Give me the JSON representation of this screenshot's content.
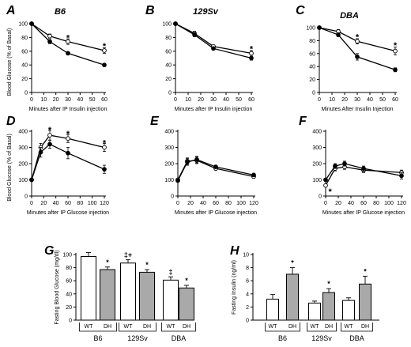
{
  "chart_data": [
    {
      "id": "A",
      "type": "line",
      "panel_letter": "A",
      "title": "B6",
      "xlabel": "Minutes after IP Insulin injection",
      "ylabel": "Blood Glucose (% of Basal)",
      "x": [
        0,
        15,
        30,
        60
      ],
      "xticks": [
        "0",
        "10",
        "20",
        "30",
        "40",
        "50",
        "60"
      ],
      "xlim": [
        0,
        60
      ],
      "yticks": [
        "0",
        "20",
        "40",
        "60",
        "80",
        "100"
      ],
      "ylim": [
        0,
        100
      ],
      "series": [
        {
          "marker": "open",
          "values": [
            100,
            82,
            74,
            61
          ],
          "errors": [
            0,
            3,
            4,
            4
          ]
        },
        {
          "marker": "filled",
          "values": [
            100,
            74,
            57,
            40
          ],
          "errors": [
            0,
            3,
            2,
            2
          ]
        }
      ],
      "sig": [
        {
          "x": 30,
          "y": 80,
          "text": "*"
        },
        {
          "x": 60,
          "y": 68,
          "text": "*"
        }
      ]
    },
    {
      "id": "B",
      "type": "line",
      "panel_letter": "B",
      "title": "129Sv",
      "xlabel": "Minutes after IP Insulin injection",
      "ylabel": "",
      "x": [
        0,
        15,
        30,
        60
      ],
      "xticks": [
        "0",
        "10",
        "20",
        "30",
        "40",
        "50",
        "60"
      ],
      "xlim": [
        0,
        60
      ],
      "yticks": [
        "0",
        "20",
        "40",
        "60",
        "80",
        "100"
      ],
      "ylim": [
        0,
        100
      ],
      "series": [
        {
          "marker": "open",
          "values": [
            100,
            86,
            67,
            57
          ],
          "errors": [
            0,
            3,
            2,
            4
          ]
        },
        {
          "marker": "filled",
          "values": [
            100,
            84,
            64,
            50
          ],
          "errors": [
            0,
            3,
            2,
            3
          ]
        }
      ],
      "sig": [
        {
          "x": 60,
          "y": 64,
          "text": "*"
        }
      ]
    },
    {
      "id": "C",
      "type": "line",
      "panel_letter": "C",
      "title": "DBA",
      "xlabel": "Minutes After Insulin Injection",
      "ylabel": "",
      "x": [
        0,
        15,
        30,
        60
      ],
      "xticks": [
        "0",
        "10",
        "20",
        "30",
        "40",
        "50",
        "60"
      ],
      "xlim": [
        0,
        60
      ],
      "yticks": [
        "0",
        "20",
        "40",
        "60",
        "80",
        "100"
      ],
      "ylim": [
        0,
        100
      ],
      "series": [
        {
          "marker": "open",
          "values": [
            100,
            94,
            79,
            64
          ],
          "errors": [
            0,
            3,
            4,
            6
          ]
        },
        {
          "marker": "filled",
          "values": [
            100,
            89,
            55,
            35
          ],
          "errors": [
            0,
            3,
            5,
            3
          ]
        }
      ],
      "sig": [
        {
          "x": 30,
          "y": 86,
          "text": "*"
        },
        {
          "x": 60,
          "y": 73,
          "text": "*"
        }
      ]
    },
    {
      "id": "D",
      "type": "line",
      "panel_letter": "D",
      "title": "",
      "xlabel": "Minutes after IP Glucose injection",
      "ylabel": "Blood Glucose (% of Basal)",
      "x": [
        0,
        15,
        30,
        60,
        120
      ],
      "xticks": [
        "0",
        "20",
        "40",
        "60",
        "80",
        "100",
        "120"
      ],
      "xlim": [
        0,
        120
      ],
      "yticks": [
        "0",
        "100",
        "200",
        "300",
        "400"
      ],
      "ylim": [
        0,
        400
      ],
      "series": [
        {
          "marker": "open",
          "values": [
            100,
            300,
            375,
            355,
            300
          ],
          "errors": [
            0,
            25,
            30,
            25,
            25
          ]
        },
        {
          "marker": "filled",
          "values": [
            100,
            270,
            320,
            265,
            165
          ],
          "errors": [
            0,
            30,
            25,
            35,
            25
          ]
        }
      ],
      "sig": [
        {
          "x": 30,
          "y": 410,
          "text": "*"
        },
        {
          "x": 60,
          "y": 385,
          "text": "*"
        },
        {
          "x": 120,
          "y": 330,
          "text": "*"
        }
      ]
    },
    {
      "id": "E",
      "type": "line",
      "panel_letter": "E",
      "title": "",
      "xlabel": "Minutes after IP Glucose injection",
      "ylabel": "",
      "x": [
        0,
        15,
        30,
        60,
        120
      ],
      "xticks": [
        "0",
        "20",
        "40",
        "60",
        "80",
        "100",
        "120"
      ],
      "xlim": [
        0,
        120
      ],
      "yticks": [
        "0",
        "100",
        "200",
        "300",
        "400"
      ],
      "ylim": [
        0,
        400
      ],
      "series": [
        {
          "marker": "open",
          "values": [
            100,
            215,
            220,
            170,
            120
          ],
          "errors": [
            0,
            20,
            20,
            10,
            10
          ]
        },
        {
          "marker": "filled",
          "values": [
            95,
            210,
            225,
            180,
            130
          ],
          "errors": [
            0,
            20,
            20,
            10,
            10
          ]
        }
      ],
      "sig": []
    },
    {
      "id": "F",
      "type": "line",
      "panel_letter": "F",
      "title": "",
      "xlabel": "Minutes after IP Glucose injection",
      "ylabel": "",
      "x": [
        0,
        15,
        30,
        60,
        120
      ],
      "xticks": [
        "0",
        "20",
        "40",
        "60",
        "80",
        "100",
        "120"
      ],
      "xlim": [
        0,
        120
      ],
      "yticks": [
        "0",
        "100",
        "200",
        "300",
        "400"
      ],
      "ylim": [
        0,
        400
      ],
      "series": [
        {
          "marker": "open",
          "values": [
            65,
            170,
            180,
            160,
            145
          ],
          "errors": [
            0,
            15,
            15,
            15,
            15
          ]
        },
        {
          "marker": "filled",
          "values": [
            100,
            185,
            200,
            170,
            125
          ],
          "errors": [
            0,
            15,
            15,
            15,
            20
          ]
        }
      ],
      "sig": [
        {
          "x": 7,
          "y": 30,
          "text": "*"
        }
      ]
    },
    {
      "id": "G",
      "type": "bar",
      "panel_letter": "G",
      "title": "",
      "ylabel": "Fasting Blood Glucose (mg/dl)",
      "categories": [
        "WT",
        "DH",
        "WT",
        "DH",
        "WT",
        "DH"
      ],
      "groups": [
        "B6",
        "129Sv",
        "DBA"
      ],
      "values": [
        97,
        77,
        87,
        73,
        61,
        49
      ],
      "errors": [
        6,
        4,
        5,
        4,
        5,
        4
      ],
      "fills": [
        "open",
        "grey",
        "open",
        "grey",
        "open",
        "grey"
      ],
      "yticks": [
        "0",
        "20",
        "40",
        "60",
        "80",
        "100"
      ],
      "ylim": [
        0,
        100
      ],
      "bar_labels": [
        "",
        "*",
        "‡+",
        "*",
        "‡",
        "*"
      ]
    },
    {
      "id": "H",
      "type": "bar",
      "panel_letter": "H",
      "title": "",
      "ylabel": "Fasting Insulin (ng/ml)",
      "categories": [
        "WT",
        "DH",
        "WT",
        "DH",
        "WT",
        "DH"
      ],
      "groups": [
        "B6",
        "129Sv",
        "DBA"
      ],
      "values": [
        3.2,
        7.0,
        2.6,
        4.2,
        3.0,
        5.5
      ],
      "errors": [
        0.7,
        1.0,
        0.3,
        0.6,
        0.4,
        1.2
      ],
      "fills": [
        "open",
        "grey",
        "open",
        "grey",
        "open",
        "grey"
      ],
      "yticks": [
        "0",
        "2",
        "4",
        "6",
        "8",
        "10"
      ],
      "ylim": [
        0,
        10
      ],
      "bar_labels": [
        "",
        "*",
        "",
        "*",
        "",
        "*"
      ]
    }
  ],
  "style": {
    "open_fill": "#ffffff",
    "filled_fill": "#000000",
    "grey_bar": "#a9a9a9",
    "line": "#000000"
  }
}
